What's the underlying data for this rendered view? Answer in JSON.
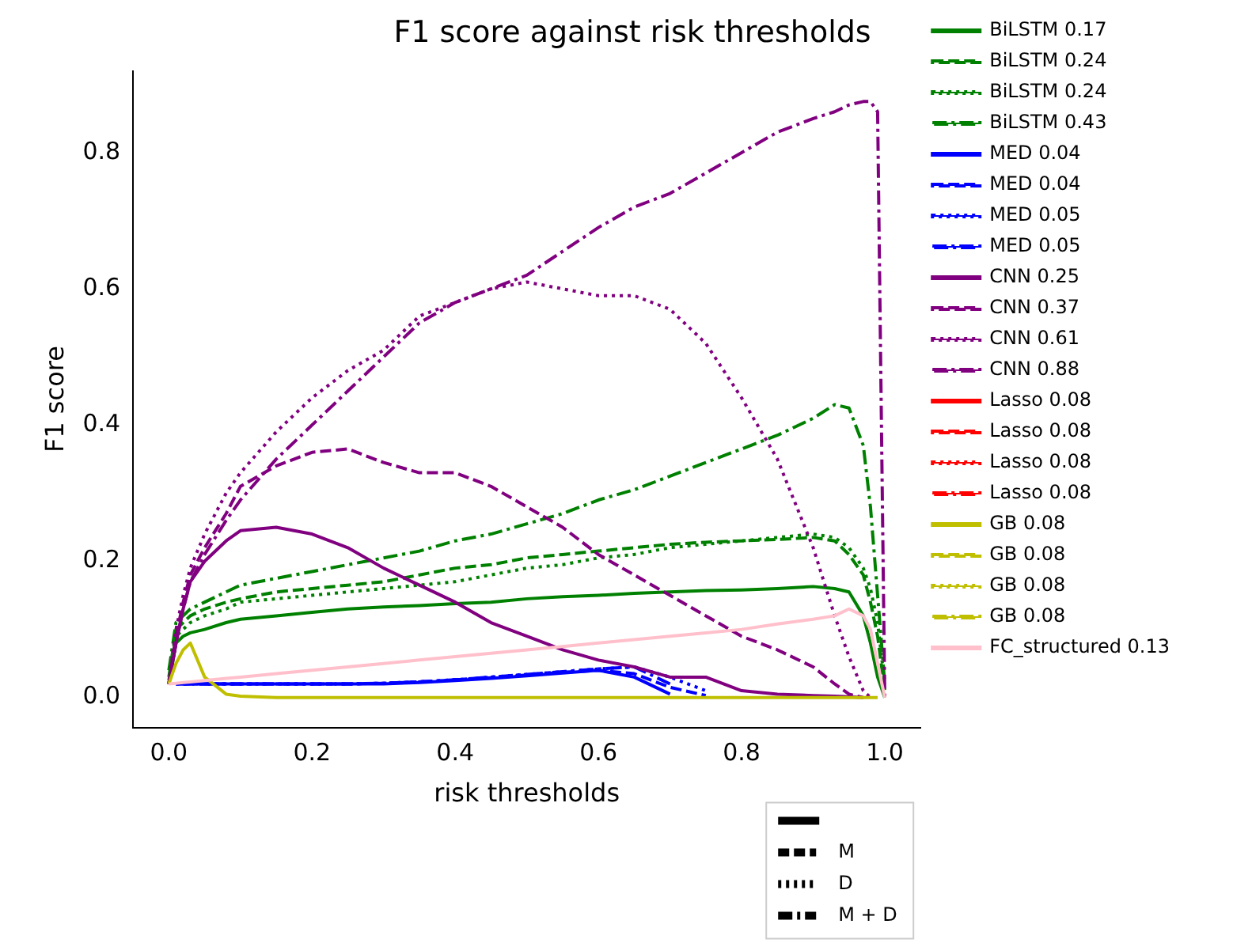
{
  "chart_data": {
    "type": "line",
    "title": "F1 score against risk thresholds",
    "xlabel": "risk thresholds",
    "ylabel": "F1 score",
    "x": [
      0,
      0.01,
      0.02,
      0.03,
      0.05,
      0.08,
      0.1,
      0.15,
      0.2,
      0.25,
      0.3,
      0.35,
      0.4,
      0.45,
      0.5,
      0.55,
      0.6,
      0.65,
      0.7,
      0.75,
      0.8,
      0.85,
      0.9,
      0.93,
      0.95,
      0.97,
      0.98,
      0.99,
      1.0
    ],
    "xlim": [
      -0.05,
      1.05
    ],
    "ylim": [
      -0.044,
      0.92
    ],
    "xticks": [
      {
        "value": 0,
        "label": "0.0"
      },
      {
        "value": 0.2,
        "label": "0.2"
      },
      {
        "value": 0.4,
        "label": "0.4"
      },
      {
        "value": 0.6,
        "label": "0.6"
      },
      {
        "value": 0.8,
        "label": "0.8"
      },
      {
        "value": 1,
        "label": "1.0"
      }
    ],
    "yticks": [
      {
        "value": 0,
        "label": "0.0"
      },
      {
        "value": 0.2,
        "label": "0.2"
      },
      {
        "value": 0.4,
        "label": "0.4"
      },
      {
        "value": 0.6,
        "label": "0.6"
      },
      {
        "value": 0.8,
        "label": "0.8"
      }
    ],
    "grid": false,
    "legend": "top right",
    "marker": "none",
    "annotations": [
      "M",
      "D",
      "M + D"
    ],
    "series": [
      {
        "name": "BiLSTM 0.17",
        "color": "#008000",
        "line_style": "solid",
        "values": [
          0.02,
          0.08,
          0.09,
          0.095,
          0.1,
          0.11,
          0.115,
          0.12,
          0.125,
          0.13,
          0.133,
          0.135,
          0.138,
          0.14,
          0.145,
          0.148,
          0.15,
          0.153,
          0.155,
          0.157,
          0.158,
          0.16,
          0.163,
          0.16,
          0.155,
          0.12,
          0.08,
          0.03,
          0
        ]
      },
      {
        "name": "BiLSTM 0.24",
        "color": "#008000",
        "line_style": "dashed",
        "values": [
          0.03,
          0.1,
          0.11,
          0.12,
          0.13,
          0.14,
          0.145,
          0.155,
          0.16,
          0.165,
          0.17,
          0.18,
          0.19,
          0.195,
          0.205,
          0.21,
          0.215,
          0.22,
          0.225,
          0.228,
          0.23,
          0.232,
          0.235,
          0.23,
          0.21,
          0.18,
          0.14,
          0.09,
          0.01
        ]
      },
      {
        "name": "BiLSTM 0.24",
        "color": "#008000",
        "line_style": "dotted",
        "values": [
          0.025,
          0.09,
          0.1,
          0.11,
          0.12,
          0.13,
          0.14,
          0.145,
          0.15,
          0.155,
          0.16,
          0.165,
          0.17,
          0.18,
          0.19,
          0.195,
          0.205,
          0.21,
          0.22,
          0.225,
          0.23,
          0.235,
          0.24,
          0.235,
          0.22,
          0.19,
          0.16,
          0.11,
          0.02
        ]
      },
      {
        "name": "BiLSTM 0.43",
        "color": "#008000",
        "line_style": "dashdot",
        "values": [
          0.04,
          0.11,
          0.12,
          0.13,
          0.14,
          0.155,
          0.165,
          0.175,
          0.185,
          0.195,
          0.205,
          0.215,
          0.23,
          0.24,
          0.255,
          0.27,
          0.29,
          0.305,
          0.325,
          0.345,
          0.365,
          0.385,
          0.41,
          0.43,
          0.425,
          0.37,
          0.28,
          0.15,
          0.02
        ]
      },
      {
        "name": "MED 0.04",
        "color": "#0000ff",
        "line_style": "solid",
        "values": [
          null,
          0.02,
          0.02,
          0.02,
          0.02,
          0.02,
          0.02,
          0.02,
          0.02,
          0.02,
          0.02,
          0.022,
          0.025,
          0.028,
          0.032,
          0.036,
          0.04,
          0.03,
          0.005,
          null,
          null,
          null,
          null,
          null,
          null,
          null,
          null,
          null,
          null
        ]
      },
      {
        "name": "MED 0.04",
        "color": "#0000ff",
        "line_style": "dashed",
        "values": [
          null,
          null,
          0.02,
          0.02,
          0.02,
          0.02,
          0.02,
          0.02,
          0.02,
          0.02,
          0.021,
          0.023,
          0.026,
          0.029,
          0.033,
          0.037,
          0.04,
          0.035,
          0.015,
          0.003,
          null,
          null,
          null,
          null,
          null,
          null,
          null,
          null,
          null
        ]
      },
      {
        "name": "MED 0.05",
        "color": "#0000ff",
        "line_style": "dotted",
        "values": [
          null,
          0.02,
          0.02,
          0.02,
          0.02,
          0.02,
          0.02,
          0.02,
          0.02,
          0.02,
          0.021,
          0.023,
          0.026,
          0.03,
          0.034,
          0.038,
          0.042,
          0.045,
          0.03,
          0.01,
          null,
          null,
          null,
          null,
          null,
          null,
          null,
          null,
          null
        ]
      },
      {
        "name": "MED 0.05",
        "color": "#0000ff",
        "line_style": "dashdot",
        "values": [
          null,
          0.02,
          0.02,
          0.02,
          0.02,
          0.02,
          0.02,
          0.02,
          0.02,
          0.02,
          0.021,
          0.023,
          0.026,
          0.03,
          0.034,
          0.038,
          0.042,
          0.045,
          0.02,
          null,
          null,
          null,
          null,
          null,
          null,
          null,
          null,
          null,
          null
        ]
      },
      {
        "name": "CNN 0.25",
        "color": "#800080",
        "line_style": "solid",
        "values": [
          0.02,
          0.08,
          0.13,
          0.17,
          0.2,
          0.23,
          0.245,
          0.25,
          0.24,
          0.22,
          0.19,
          0.165,
          0.14,
          0.11,
          0.09,
          0.07,
          0.055,
          0.045,
          0.03,
          0.03,
          0.01,
          0.005,
          0.003,
          0.002,
          0.001,
          0,
          null,
          null,
          null
        ]
      },
      {
        "name": "CNN 0.37",
        "color": "#800080",
        "line_style": "dashed",
        "values": [
          0.02,
          0.09,
          0.14,
          0.18,
          0.22,
          0.27,
          0.31,
          0.34,
          0.36,
          0.365,
          0.345,
          0.33,
          0.33,
          0.31,
          0.28,
          0.25,
          0.21,
          0.18,
          0.15,
          0.12,
          0.09,
          0.07,
          0.045,
          0.02,
          0.005,
          0,
          null,
          null,
          null
        ]
      },
      {
        "name": "CNN 0.61",
        "color": "#800080",
        "line_style": "dotted",
        "values": [
          0.02,
          0.1,
          0.15,
          0.19,
          0.24,
          0.3,
          0.33,
          0.39,
          0.44,
          0.48,
          0.51,
          0.56,
          0.58,
          0.6,
          0.61,
          0.6,
          0.59,
          0.59,
          0.57,
          0.52,
          0.44,
          0.35,
          0.22,
          0.12,
          0.06,
          0.01,
          0,
          null,
          null
        ]
      },
      {
        "name": "CNN 0.88",
        "color": "#800080",
        "line_style": "dashdot",
        "values": [
          0.02,
          0.08,
          0.13,
          0.17,
          0.21,
          0.26,
          0.29,
          0.35,
          0.4,
          0.45,
          0.5,
          0.55,
          0.58,
          0.6,
          0.62,
          0.655,
          0.69,
          0.72,
          0.74,
          0.77,
          0.8,
          0.83,
          0.85,
          0.86,
          0.87,
          0.875,
          0.875,
          0.86,
          0
        ]
      },
      {
        "name": "Lasso 0.08",
        "color": "#ff0000",
        "line_style": "solid",
        "values": [
          null,
          null,
          null,
          null,
          null,
          null,
          null,
          null,
          null,
          null,
          null,
          null,
          null,
          null,
          null,
          null,
          null,
          null,
          null,
          null,
          null,
          null,
          null,
          null,
          null,
          null,
          null,
          null,
          null
        ]
      },
      {
        "name": "Lasso 0.08",
        "color": "#ff0000",
        "line_style": "dashed",
        "values": [
          null,
          null,
          null,
          null,
          null,
          null,
          null,
          null,
          null,
          null,
          null,
          null,
          null,
          null,
          null,
          null,
          null,
          null,
          null,
          null,
          null,
          null,
          null,
          null,
          null,
          null,
          null,
          null,
          null
        ]
      },
      {
        "name": "Lasso 0.08",
        "color": "#ff0000",
        "line_style": "dotted",
        "values": [
          null,
          null,
          null,
          null,
          null,
          null,
          null,
          null,
          null,
          null,
          null,
          null,
          null,
          null,
          null,
          null,
          null,
          null,
          null,
          null,
          null,
          null,
          null,
          null,
          null,
          null,
          null,
          null,
          null
        ]
      },
      {
        "name": "Lasso 0.08",
        "color": "#ff0000",
        "line_style": "dashdot",
        "values": [
          null,
          null,
          null,
          null,
          null,
          null,
          null,
          null,
          null,
          null,
          null,
          null,
          null,
          null,
          null,
          null,
          null,
          null,
          null,
          null,
          null,
          null,
          null,
          null,
          null,
          null,
          null,
          null,
          null
        ]
      },
      {
        "name": "GB 0.08",
        "color": "#bfbf00",
        "line_style": "solid",
        "values": [
          0.02,
          0.05,
          0.07,
          0.08,
          0.03,
          0.005,
          0.002,
          0,
          0,
          0,
          0,
          0,
          0,
          0,
          0,
          0,
          0,
          0,
          0,
          0,
          0,
          0,
          0,
          0,
          0,
          0,
          0,
          0,
          null
        ]
      },
      {
        "name": "GB 0.08",
        "color": "#bfbf00",
        "line_style": "dashed",
        "values": [
          null,
          null,
          null,
          null,
          null,
          null,
          null,
          null,
          null,
          null,
          null,
          null,
          null,
          null,
          null,
          null,
          null,
          null,
          null,
          null,
          null,
          null,
          null,
          null,
          null,
          null,
          null,
          null,
          null
        ]
      },
      {
        "name": "GB 0.08",
        "color": "#bfbf00",
        "line_style": "dotted",
        "values": [
          null,
          null,
          null,
          null,
          null,
          null,
          null,
          null,
          null,
          null,
          null,
          null,
          null,
          null,
          null,
          null,
          null,
          null,
          null,
          null,
          null,
          null,
          null,
          null,
          null,
          null,
          null,
          null,
          null
        ]
      },
      {
        "name": "GB 0.08",
        "color": "#bfbf00",
        "line_style": "dashdot",
        "values": [
          null,
          null,
          null,
          null,
          null,
          null,
          null,
          null,
          null,
          null,
          null,
          null,
          null,
          null,
          null,
          null,
          null,
          null,
          null,
          null,
          null,
          null,
          null,
          null,
          null,
          null,
          null,
          null,
          null
        ]
      },
      {
        "name": "FC_structured 0.13",
        "color": "#ffc0cb",
        "line_style": "solid",
        "values": [
          0.02,
          0.021,
          0.022,
          0.023,
          0.025,
          0.028,
          0.03,
          0.035,
          0.04,
          0.045,
          0.05,
          0.055,
          0.06,
          0.065,
          0.07,
          0.075,
          0.08,
          0.085,
          0.09,
          0.095,
          0.1,
          0.108,
          0.115,
          0.12,
          0.13,
          0.12,
          0.1,
          0.05,
          0
        ]
      }
    ]
  }
}
